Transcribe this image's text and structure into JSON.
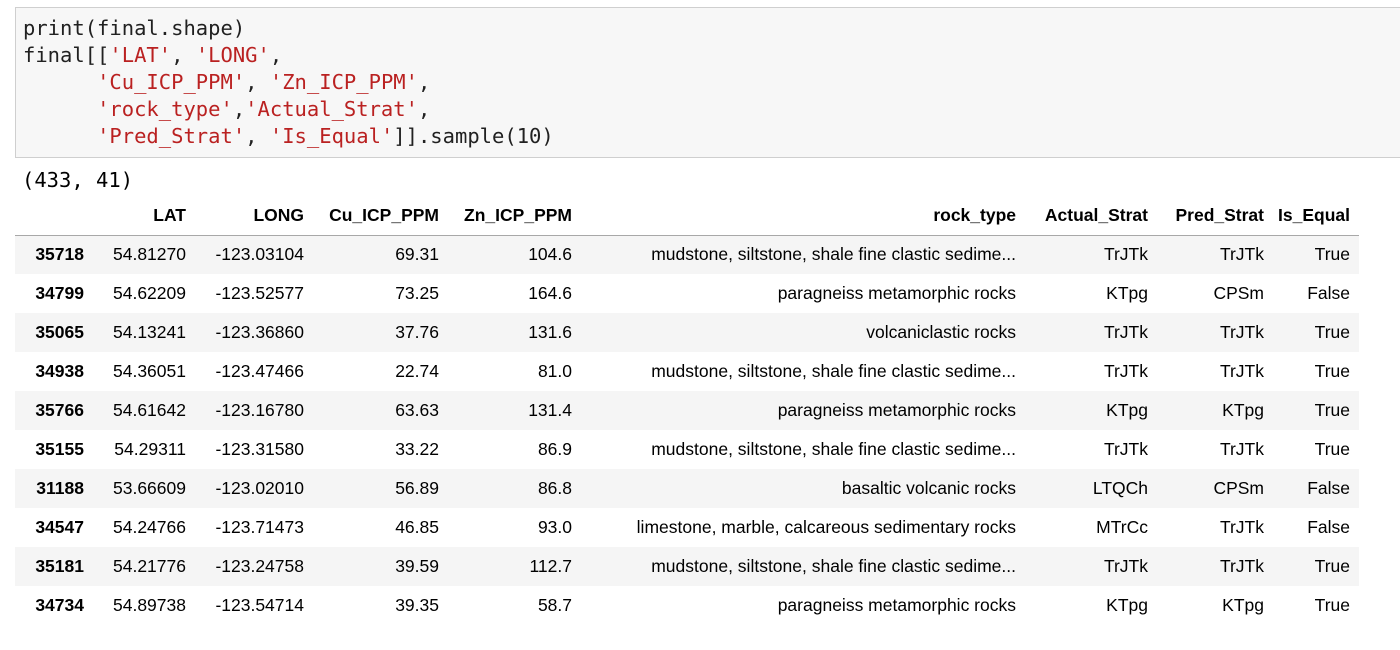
{
  "code_cell": {
    "lines": [
      [
        {
          "t": "print(final.shape)",
          "c": "plain"
        }
      ],
      [
        {
          "t": "final[[",
          "c": "plain"
        },
        {
          "t": "'LAT'",
          "c": "str"
        },
        {
          "t": ", ",
          "c": "plain"
        },
        {
          "t": "'LONG'",
          "c": "str"
        },
        {
          "t": ",",
          "c": "plain"
        }
      ],
      [
        {
          "t": "      ",
          "c": "plain"
        },
        {
          "t": "'Cu_ICP_PPM'",
          "c": "str"
        },
        {
          "t": ", ",
          "c": "plain"
        },
        {
          "t": "'Zn_ICP_PPM'",
          "c": "str"
        },
        {
          "t": ",",
          "c": "plain"
        }
      ],
      [
        {
          "t": "      ",
          "c": "plain"
        },
        {
          "t": "'rock_type'",
          "c": "str"
        },
        {
          "t": ",",
          "c": "plain"
        },
        {
          "t": "'Actual_Strat'",
          "c": "str"
        },
        {
          "t": ",",
          "c": "plain"
        }
      ],
      [
        {
          "t": "      ",
          "c": "plain"
        },
        {
          "t": "'Pred_Strat'",
          "c": "str"
        },
        {
          "t": ", ",
          "c": "plain"
        },
        {
          "t": "'Is_Equal'",
          "c": "str"
        },
        {
          "t": "]].sample(10)",
          "c": "plain"
        }
      ]
    ]
  },
  "output": {
    "shape_text": "(433, 41)"
  },
  "table": {
    "columns": [
      "",
      "LAT",
      "LONG",
      "Cu_ICP_PPM",
      "Zn_ICP_PPM",
      "rock_type",
      "Actual_Strat",
      "Pred_Strat",
      "Is_Equal"
    ],
    "rows": [
      [
        "35718",
        "54.81270",
        "-123.03104",
        "69.31",
        "104.6",
        "mudstone, siltstone, shale fine clastic sedime...",
        "TrJTk",
        "TrJTk",
        "True"
      ],
      [
        "34799",
        "54.62209",
        "-123.52577",
        "73.25",
        "164.6",
        "paragneiss metamorphic rocks",
        "KTpg",
        "CPSm",
        "False"
      ],
      [
        "35065",
        "54.13241",
        "-123.36860",
        "37.76",
        "131.6",
        "volcaniclastic rocks",
        "TrJTk",
        "TrJTk",
        "True"
      ],
      [
        "34938",
        "54.36051",
        "-123.47466",
        "22.74",
        "81.0",
        "mudstone, siltstone, shale fine clastic sedime...",
        "TrJTk",
        "TrJTk",
        "True"
      ],
      [
        "35766",
        "54.61642",
        "-123.16780",
        "63.63",
        "131.4",
        "paragneiss metamorphic rocks",
        "KTpg",
        "KTpg",
        "True"
      ],
      [
        "35155",
        "54.29311",
        "-123.31580",
        "33.22",
        "86.9",
        "mudstone, siltstone, shale fine clastic sedime...",
        "TrJTk",
        "TrJTk",
        "True"
      ],
      [
        "31188",
        "53.66609",
        "-123.02010",
        "56.89",
        "86.8",
        "basaltic volcanic rocks",
        "LTQCh",
        "CPSm",
        "False"
      ],
      [
        "34547",
        "54.24766",
        "-123.71473",
        "46.85",
        "93.0",
        "limestone, marble, calcareous sedimentary rocks",
        "MTrCc",
        "TrJTk",
        "False"
      ],
      [
        "35181",
        "54.21776",
        "-123.24758",
        "39.59",
        "112.7",
        "mudstone, siltstone, shale fine clastic sedime...",
        "TrJTk",
        "TrJTk",
        "True"
      ],
      [
        "34734",
        "54.89738",
        "-123.54714",
        "39.35",
        "58.7",
        "paragneiss metamorphic rocks",
        "KTpg",
        "KTpg",
        "True"
      ]
    ]
  }
}
